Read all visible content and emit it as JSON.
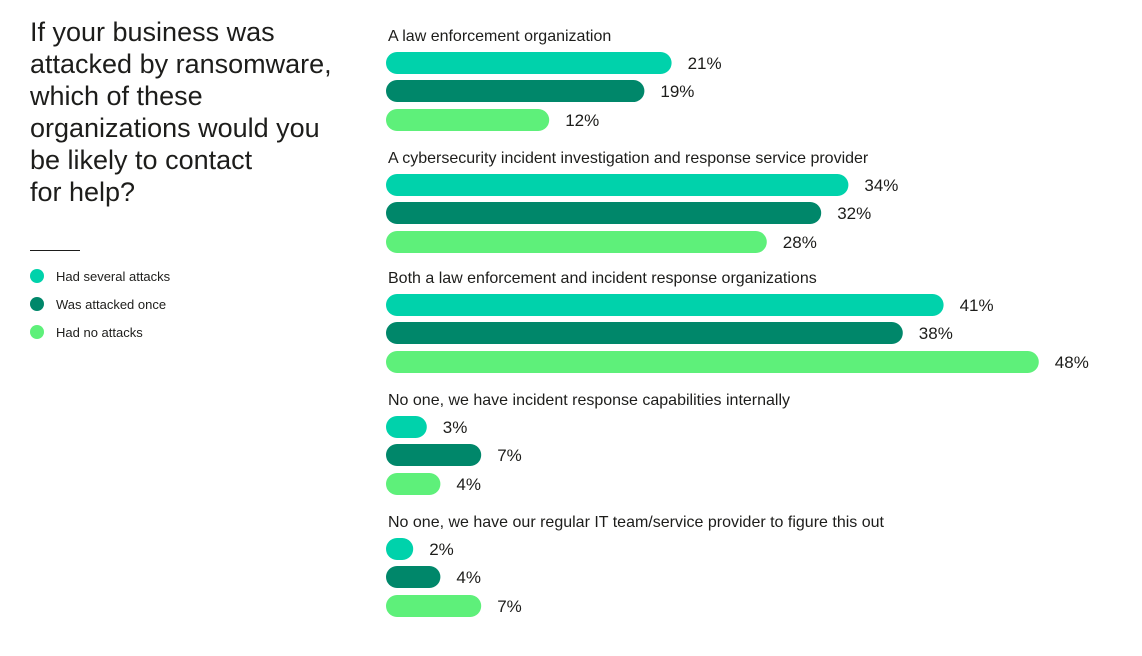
{
  "chart_data": {
    "type": "bar",
    "orientation": "horizontal",
    "title": "If your business was attacked by ransomware, which of these organizations would you be likely to contact for help?",
    "title_lines": [
      "If your business was",
      "attacked by ransomware,",
      "which of these",
      "organizations would you",
      "be likely to contact",
      "for help?"
    ],
    "categories": [
      "A law enforcement organization",
      "A cybersecurity incident investigation and response service provider",
      "Both a law enforcement and incident response organizations",
      "No one, we have incident response capabilities internally",
      "No one, we have our regular IT team/service provider to figure this out"
    ],
    "series": [
      {
        "name": "Had several attacks",
        "color": "#00d2ab",
        "values": [
          21,
          34,
          41,
          3,
          2
        ]
      },
      {
        "name": "Was attacked once",
        "color": "#00876a",
        "values": [
          19,
          32,
          38,
          7,
          4
        ]
      },
      {
        "name": "Had no attacks",
        "color": "#5ef07a",
        "values": [
          12,
          28,
          48,
          4,
          7
        ]
      }
    ],
    "value_suffix": "%",
    "xlim": [
      0,
      48
    ],
    "legend_position": "left"
  }
}
